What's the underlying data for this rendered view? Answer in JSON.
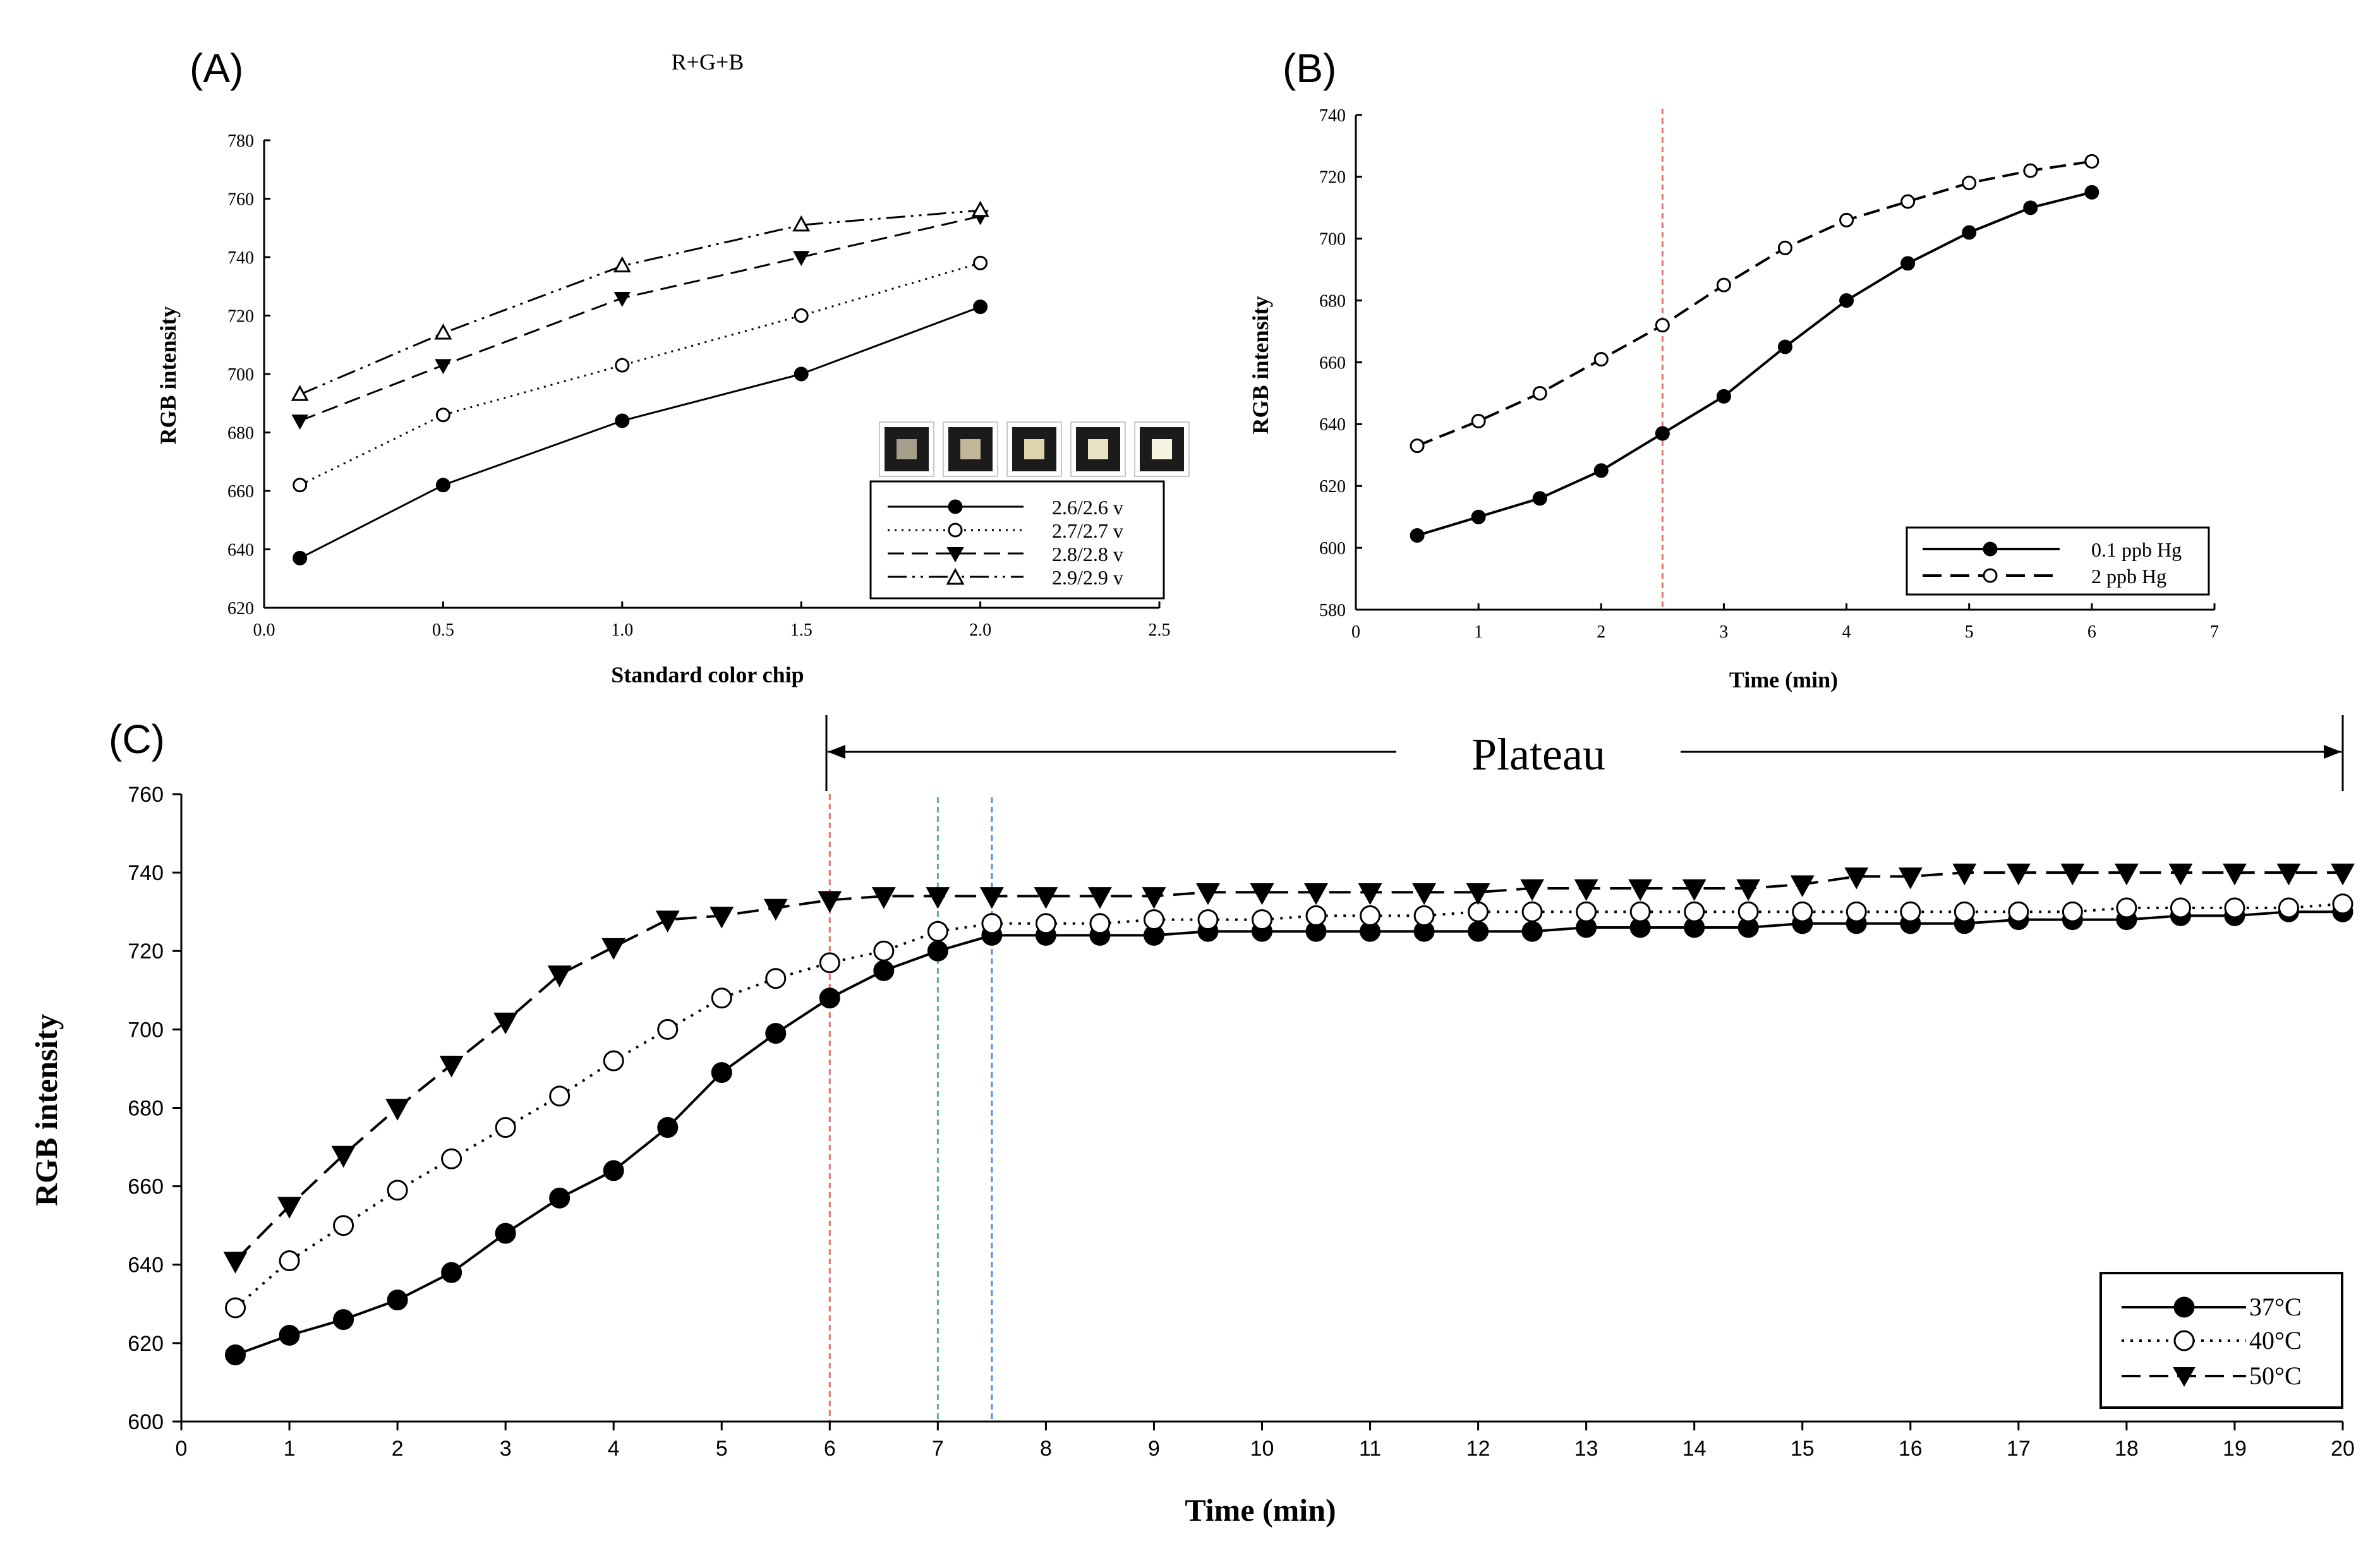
{
  "figure": {
    "background": "#ffffff",
    "ink": "#000000"
  },
  "chart_data": [
    {
      "id": "A",
      "type": "line",
      "panel_label": "(A)",
      "title": "R+G+B",
      "xlabel": "Standard color chip",
      "ylabel": "RGB intensity",
      "xlim": [
        0,
        2.5
      ],
      "ylim": [
        620,
        780
      ],
      "xticks": [
        0,
        0.5,
        1,
        1.5,
        2,
        2.5
      ],
      "xtick_labels": [
        "0.0",
        "0.5",
        "1.0",
        "1.5",
        "2.0",
        "2.5"
      ],
      "yticks": [
        620,
        640,
        660,
        680,
        700,
        720,
        740,
        760,
        780
      ],
      "ytick_labels": [
        "620",
        "640",
        "660",
        "680",
        "700",
        "720",
        "740",
        "760",
        "780"
      ],
      "x": [
        0.1,
        0.5,
        1.0,
        1.5,
        2.0
      ],
      "series": [
        {
          "name": "2.6/2.6 v",
          "marker": "filled-circle",
          "dash": "solid",
          "values": [
            637,
            662,
            684,
            700,
            723
          ]
        },
        {
          "name": "2.7/2.7 v",
          "marker": "open-circle",
          "dash": "dotted",
          "values": [
            662,
            686,
            703,
            720,
            738
          ]
        },
        {
          "name": "2.8/2.8 v",
          "marker": "filled-triangle-down",
          "dash": "dashed",
          "values": [
            684,
            703,
            726,
            740,
            754
          ]
        },
        {
          "name": "2.9/2.9 v",
          "marker": "open-triangle-up",
          "dash": "dash-dot-dot",
          "values": [
            693,
            714,
            737,
            751,
            756
          ]
        }
      ],
      "legend_position": "bottom-right",
      "color_chips": [
        "#a69f8c",
        "#c2b898",
        "#ddd3ad",
        "#ebe4c4",
        "#f7f3e1"
      ]
    },
    {
      "id": "B",
      "type": "line",
      "panel_label": "(B)",
      "title": "",
      "xlabel": "Time (min)",
      "ylabel": "RGB intensity",
      "xlim": [
        0,
        7
      ],
      "ylim": [
        580,
        740
      ],
      "xticks": [
        0,
        1,
        2,
        3,
        4,
        5,
        6,
        7
      ],
      "xtick_labels": [
        "0",
        "1",
        "2",
        "3",
        "4",
        "5",
        "6",
        "7"
      ],
      "yticks": [
        580,
        600,
        620,
        640,
        660,
        680,
        700,
        720,
        740
      ],
      "ytick_labels": [
        "580",
        "600",
        "620",
        "640",
        "660",
        "680",
        "700",
        "720",
        "740"
      ],
      "x": [
        0.5,
        1,
        1.5,
        2,
        2.5,
        3,
        3.5,
        4,
        4.5,
        5,
        5.5,
        6
      ],
      "series": [
        {
          "name": "0.1 ppb Hg",
          "marker": "filled-circle",
          "dash": "solid",
          "values": [
            604,
            610,
            616,
            625,
            637,
            649,
            665,
            680,
            692,
            702,
            710,
            715
          ]
        },
        {
          "name": "2 ppb Hg",
          "marker": "open-circle",
          "dash": "dashed",
          "values": [
            633,
            641,
            650,
            661,
            672,
            685,
            697,
            706,
            712,
            718,
            722,
            725
          ]
        }
      ],
      "vlines": [
        {
          "x": 2.5,
          "color": "#e8736a"
        }
      ],
      "legend_position": "bottom-right"
    },
    {
      "id": "C",
      "type": "line",
      "panel_label": "(C)",
      "title": "",
      "xlabel": "Time (min)",
      "ylabel": "RGB intensity",
      "xlim": [
        0,
        20
      ],
      "ylim": [
        600,
        760
      ],
      "xticks": [
        0,
        1,
        2,
        3,
        4,
        5,
        6,
        7,
        8,
        9,
        10,
        11,
        12,
        13,
        14,
        15,
        16,
        17,
        18,
        19,
        20
      ],
      "xtick_labels": [
        "0",
        "1",
        "2",
        "3",
        "4",
        "5",
        "6",
        "7",
        "8",
        "9",
        "10",
        "11",
        "12",
        "13",
        "14",
        "15",
        "16",
        "17",
        "18",
        "19",
        "20"
      ],
      "yticks": [
        600,
        620,
        640,
        660,
        680,
        700,
        720,
        740,
        760
      ],
      "ytick_labels": [
        "600",
        "620",
        "640",
        "660",
        "680",
        "700",
        "720",
        "740",
        "760"
      ],
      "x": [
        0.5,
        1,
        1.5,
        2,
        2.5,
        3,
        3.5,
        4,
        4.5,
        5,
        5.5,
        6,
        6.5,
        7,
        7.5,
        8,
        8.5,
        9,
        9.5,
        10,
        10.5,
        11,
        11.5,
        12,
        12.5,
        13,
        13.5,
        14,
        14.5,
        15,
        15.5,
        16,
        16.5,
        17,
        17.5,
        18,
        18.5,
        19,
        19.5,
        20
      ],
      "series": [
        {
          "name": "37°C",
          "marker": "filled-circle",
          "dash": "solid",
          "values": [
            617,
            622,
            626,
            631,
            638,
            648,
            657,
            664,
            675,
            689,
            699,
            708,
            715,
            720,
            724,
            724,
            724,
            724,
            725,
            725,
            725,
            725,
            725,
            725,
            725,
            726,
            726,
            726,
            726,
            727,
            727,
            727,
            727,
            728,
            728,
            728,
            729,
            729,
            730,
            730
          ]
        },
        {
          "name": "40°C",
          "marker": "open-circle",
          "dash": "dotted",
          "values": [
            629,
            641,
            650,
            659,
            667,
            675,
            683,
            692,
            700,
            708,
            713,
            717,
            720,
            725,
            727,
            727,
            727,
            728,
            728,
            728,
            729,
            729,
            729,
            730,
            730,
            730,
            730,
            730,
            730,
            730,
            730,
            730,
            730,
            730,
            730,
            731,
            731,
            731,
            731,
            732
          ]
        },
        {
          "name": "50°C",
          "marker": "filled-triangle-down",
          "dash": "dashed",
          "values": [
            641,
            655,
            668,
            680,
            691,
            702,
            714,
            721,
            728,
            729,
            731,
            733,
            734,
            734,
            734,
            734,
            734,
            734,
            735,
            735,
            735,
            735,
            735,
            735,
            736,
            736,
            736,
            736,
            736,
            737,
            739,
            739,
            740,
            740,
            740,
            740,
            740,
            740,
            740,
            740
          ]
        }
      ],
      "vlines": [
        {
          "x": 6,
          "color": "#e8736a"
        },
        {
          "x": 7,
          "color": "#5fb08a"
        },
        {
          "x": 7.5,
          "color": "#5a8ed6"
        }
      ],
      "annotation": {
        "text": "Plateau",
        "x_start": 6,
        "x_end": 20
      },
      "legend_position": "bottom-right"
    }
  ]
}
